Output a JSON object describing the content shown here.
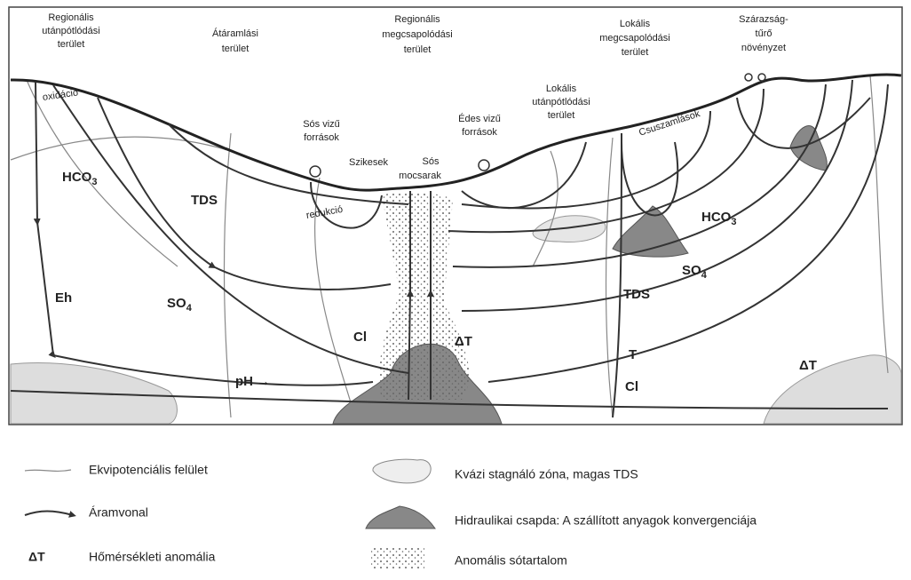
{
  "top_labels": [
    {
      "lines": [
        "Regionális",
        "utánpótlódási",
        "terület"
      ]
    },
    {
      "lines": [
        "Átáramlási",
        "terület"
      ]
    },
    {
      "lines": [
        "Regionális",
        "megcsapolódási",
        "terület"
      ]
    },
    {
      "lines": [
        "Lokális",
        "megcsapolódási",
        "terület"
      ]
    },
    {
      "lines": [
        "Szárazság-",
        "tűrő",
        "növényzet"
      ]
    }
  ],
  "annotations": [
    {
      "lines": [
        "Lokális",
        "utánpótlódási",
        "terület"
      ]
    },
    {
      "lines": [
        "Csuszamlások"
      ]
    },
    {
      "lines": [
        "Sós vizű",
        "források"
      ]
    },
    {
      "lines": [
        "Édes vizű",
        "források"
      ]
    },
    {
      "lines": [
        "Szikesek"
      ]
    },
    {
      "lines": [
        "Sós",
        "mocsarak"
      ]
    },
    {
      "lines": [
        "oxidáció"
      ]
    },
    {
      "lines": [
        "redukció"
      ]
    }
  ],
  "chemistry": [
    {
      "main": "HCO",
      "sub": "3"
    },
    {
      "main": "TDS"
    },
    {
      "main": "Eh"
    },
    {
      "main": "SO",
      "sub": "4"
    },
    {
      "main": "Cl"
    },
    {
      "main": "pH →"
    },
    {
      "main": "ΔT"
    },
    {
      "main": "HCO",
      "sub": "3"
    },
    {
      "main": "SO",
      "sub": "4"
    },
    {
      "main": "TDS"
    },
    {
      "main": "T"
    },
    {
      "main": "Cl"
    },
    {
      "main": "ΔT"
    }
  ],
  "legend": [
    {
      "label": "Ekvipotenciális felület"
    },
    {
      "label": "Áramvonal"
    },
    {
      "symbol": "ΔT",
      "label": "Hőmérsékleti anomália"
    },
    {
      "label": "Kvázi stagnáló zóna, magas TDS"
    },
    {
      "label": "Hidraulikai csapda: A szállított anyagok konvergenciája"
    },
    {
      "label": "Anomális sótartalom"
    }
  ]
}
